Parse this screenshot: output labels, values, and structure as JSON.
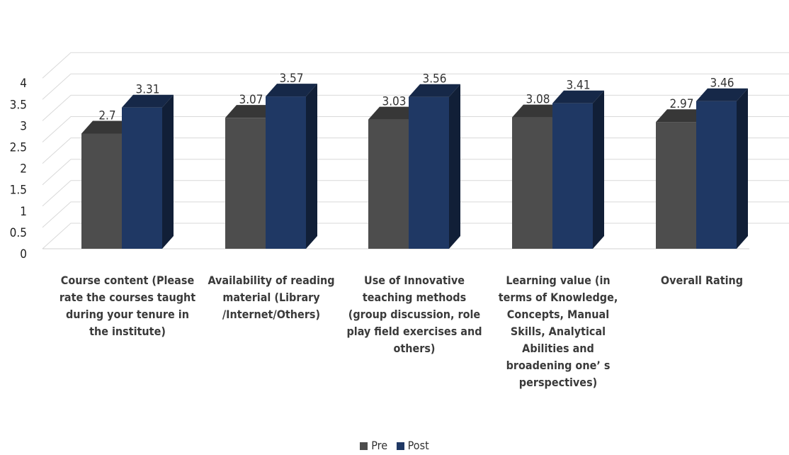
{
  "chart_data": {
    "type": "bar",
    "variant": "3d-clustered-column",
    "title": "",
    "xlabel": "",
    "ylabel": "",
    "ylim": [
      0,
      4
    ],
    "yticks": [
      "0",
      "0.5",
      "1",
      "1.5",
      "2",
      "2.5",
      "3",
      "3.5",
      "4"
    ],
    "grid": true,
    "legend_position": "bottom",
    "categories": [
      "Course content (Please rate the courses taught during your tenure in the institute)",
      "Availability of reading material (Library /Internet/Others)",
      "Use of Innovative teaching methods (group discussion, role play field exercises and others)",
      "Learning value (in terms of Knowledge, Concepts, Manual Skills, Analytical Abilities and broadening one’ s perspectives)",
      "Overall Rating"
    ],
    "category_label_lines": [
      [
        "Course content (Please",
        "rate the courses taught",
        "during your tenure in",
        "the institute)"
      ],
      [
        "Availability of reading",
        "material (Library",
        "/Internet/Others)"
      ],
      [
        "Use of Innovative",
        "teaching methods",
        "(group discussion, role",
        "play field exercises and",
        "others)"
      ],
      [
        "Learning value (in",
        "terms of Knowledge,",
        "Concepts, Manual",
        "Skills, Analytical",
        "Abilities and",
        "broadening one’ s",
        "perspectives)"
      ],
      [
        "Overall Rating"
      ]
    ],
    "series": [
      {
        "name": "Pre",
        "color": "#4d4d4d",
        "values": [
          2.7,
          3.07,
          3.03,
          3.08,
          2.97
        ],
        "labels": [
          "2.7",
          "3.07",
          "3.03",
          "3.08",
          "2.97"
        ]
      },
      {
        "name": "Post",
        "color": "#1f3864",
        "values": [
          3.31,
          3.57,
          3.56,
          3.41,
          3.46
        ],
        "labels": [
          "3.31",
          "3.57",
          "3.56",
          "3.41",
          "3.46"
        ]
      }
    ]
  }
}
